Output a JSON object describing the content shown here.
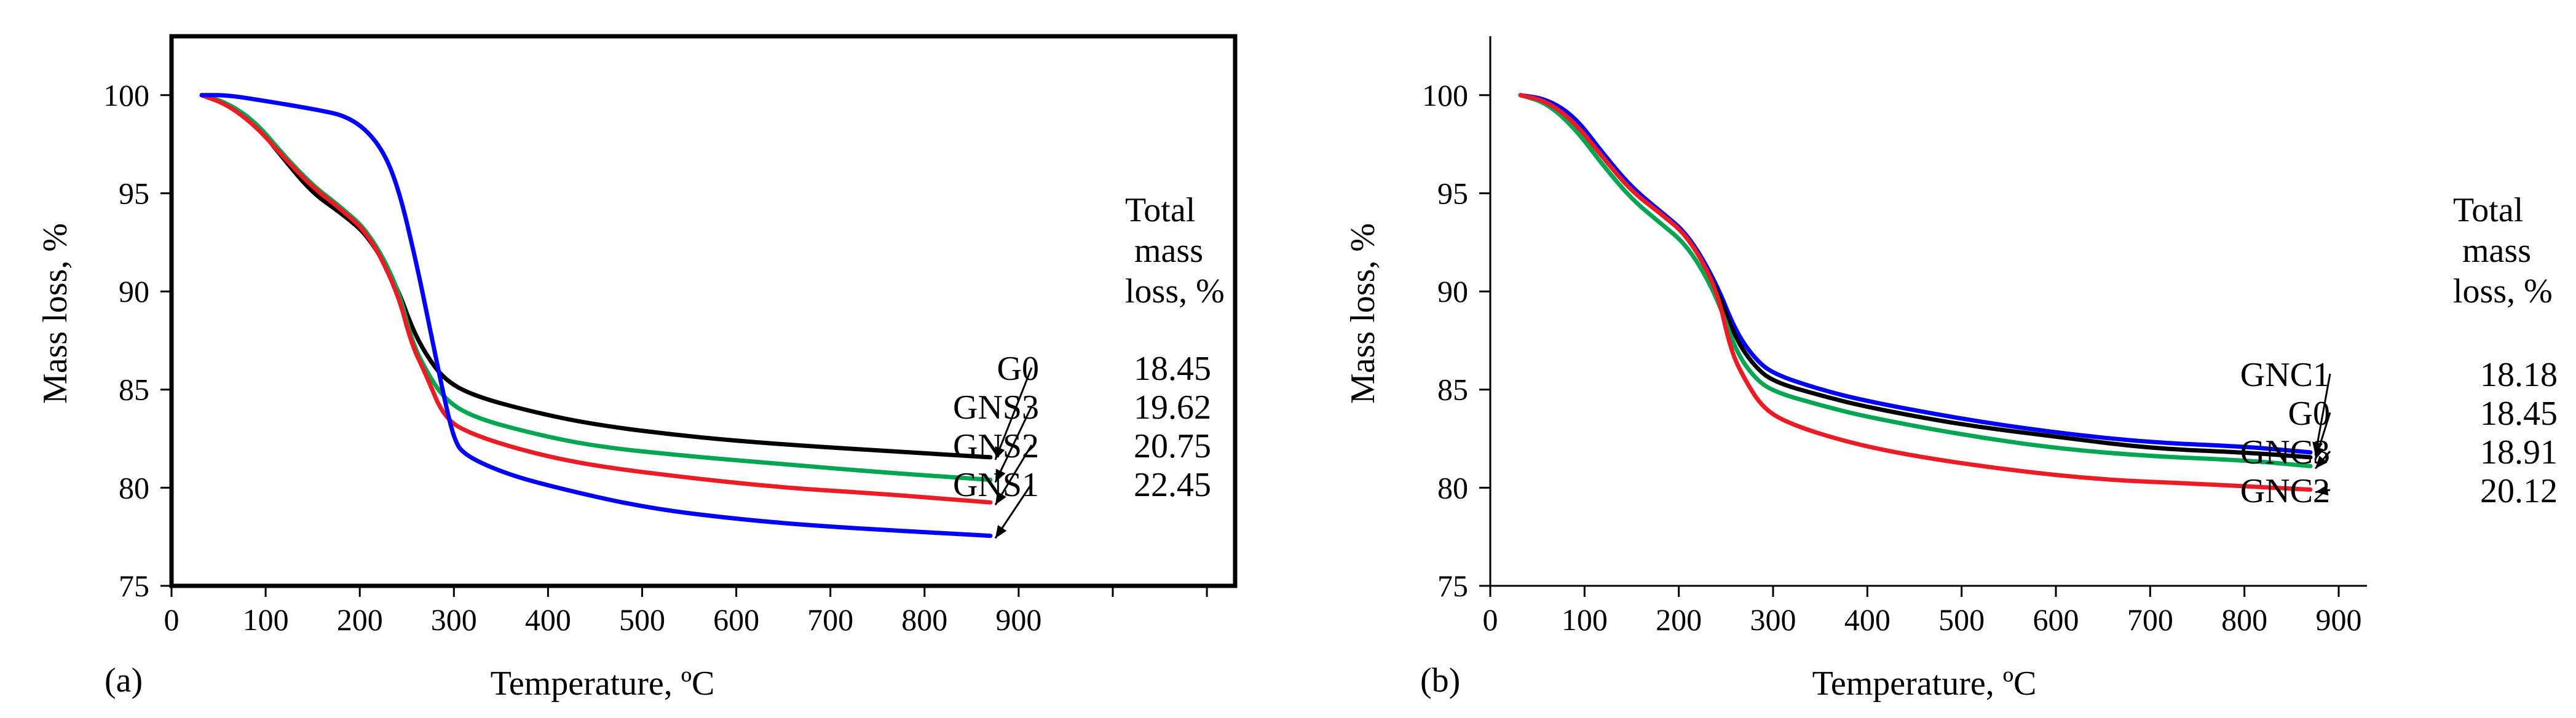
{
  "chart_data": [
    {
      "panel": "(a)",
      "type": "line",
      "xlabel": "Temperature, ºC",
      "ylabel": "Mass loss, %",
      "xlim": [
        0,
        1130
      ],
      "ylim": [
        75,
        103
      ],
      "xticks": [
        0,
        100,
        200,
        300,
        400,
        500,
        600,
        700,
        800,
        900
      ],
      "yticks": [
        75,
        80,
        85,
        90,
        95,
        100
      ],
      "annotation_header": [
        "Total",
        "mass",
        "loss, %"
      ],
      "series": [
        {
          "name": "G0",
          "color": "#000000",
          "total_mass_loss": "18.45",
          "x": [
            32,
            60,
            90,
            120,
            150,
            180,
            210,
            240,
            255,
            270,
            290,
            320,
            380,
            450,
            550,
            650,
            750,
            870
          ],
          "y": [
            100,
            99.6,
            98.5,
            96.7,
            95.0,
            94.0,
            92.8,
            90.2,
            88.2,
            86.8,
            85.5,
            84.7,
            83.9,
            83.2,
            82.6,
            82.2,
            81.9,
            81.55
          ]
        },
        {
          "name": "GNS3",
          "color": "#00A651",
          "total_mass_loss": "19.62",
          "x": [
            32,
            60,
            90,
            120,
            150,
            180,
            210,
            240,
            255,
            270,
            290,
            320,
            380,
            450,
            550,
            650,
            750,
            870
          ],
          "y": [
            100,
            99.6,
            98.6,
            96.9,
            95.4,
            94.3,
            93.0,
            90.3,
            87.5,
            86.0,
            84.5,
            83.6,
            82.8,
            82.1,
            81.6,
            81.2,
            80.8,
            80.4
          ]
        },
        {
          "name": "GNS2",
          "color": "#ED1C24",
          "total_mass_loss": "20.75",
          "x": [
            32,
            60,
            90,
            120,
            150,
            180,
            210,
            240,
            255,
            270,
            290,
            320,
            380,
            450,
            550,
            650,
            750,
            870
          ],
          "y": [
            100,
            99.5,
            98.4,
            96.8,
            95.3,
            94.2,
            92.9,
            90.0,
            87.3,
            85.8,
            83.5,
            82.7,
            81.8,
            81.1,
            80.5,
            80.0,
            79.7,
            79.25
          ]
        },
        {
          "name": "GNS1",
          "color": "#0000FF",
          "total_mass_loss": "22.45",
          "x": [
            32,
            60,
            100,
            150,
            190,
            220,
            240,
            260,
            275,
            290,
            300,
            310,
            350,
            400,
            500,
            600,
            700,
            870
          ],
          "y": [
            100,
            100,
            99.7,
            99.3,
            98.9,
            97.6,
            95.5,
            91.5,
            88.0,
            84.5,
            82.5,
            81.7,
            80.8,
            80.1,
            79.0,
            78.4,
            78.0,
            77.55
          ]
        }
      ],
      "labels_order": [
        "G0",
        "GNS3",
        "GNS2",
        "GNS1"
      ]
    },
    {
      "panel": "(b)",
      "type": "line",
      "xlabel": "Temperature, ºC",
      "ylabel": "Mass loss, %",
      "xlim": [
        0,
        930
      ],
      "ylim": [
        75,
        103
      ],
      "xticks": [
        0,
        100,
        200,
        300,
        400,
        500,
        600,
        700,
        800,
        900
      ],
      "yticks": [
        75,
        80,
        85,
        90,
        95,
        100
      ],
      "annotation_header": [
        "Total",
        "mass",
        "loss, %"
      ],
      "series": [
        {
          "name": "GNC1",
          "color": "#0000FF",
          "total_mass_loss": "18.18",
          "x": [
            32,
            60,
            90,
            120,
            150,
            180,
            210,
            240,
            260,
            280,
            300,
            350,
            400,
            500,
            600,
            700,
            800,
            870
          ],
          "y": [
            100,
            99.8,
            98.9,
            97.0,
            95.3,
            94.1,
            92.9,
            90.4,
            88.0,
            86.6,
            85.8,
            85.0,
            84.4,
            83.5,
            82.8,
            82.3,
            82.1,
            81.8
          ]
        },
        {
          "name": "G0",
          "color": "#000000",
          "total_mass_loss": "18.45",
          "x": [
            32,
            60,
            90,
            120,
            150,
            180,
            210,
            240,
            260,
            280,
            300,
            350,
            400,
            500,
            600,
            700,
            800,
            870
          ],
          "y": [
            100,
            99.7,
            98.6,
            96.8,
            95.1,
            94.0,
            92.8,
            90.2,
            87.6,
            86.2,
            85.4,
            84.7,
            84.1,
            83.2,
            82.6,
            82.0,
            81.8,
            81.55
          ]
        },
        {
          "name": "GNC3",
          "color": "#00A651",
          "total_mass_loss": "18.91",
          "x": [
            32,
            60,
            90,
            120,
            150,
            180,
            210,
            240,
            260,
            280,
            300,
            350,
            400,
            500,
            600,
            700,
            800,
            870
          ],
          "y": [
            100,
            99.6,
            98.3,
            96.4,
            94.7,
            93.5,
            92.3,
            89.8,
            87.0,
            85.6,
            84.9,
            84.2,
            83.6,
            82.7,
            82.0,
            81.6,
            81.4,
            81.1
          ]
        },
        {
          "name": "GNC2",
          "color": "#ED1C24",
          "total_mass_loss": "20.12",
          "x": [
            32,
            60,
            90,
            120,
            150,
            180,
            210,
            240,
            255,
            270,
            290,
            320,
            380,
            450,
            550,
            650,
            750,
            870
          ],
          "y": [
            100,
            99.7,
            98.6,
            96.8,
            95.1,
            94.0,
            92.8,
            90.2,
            87.0,
            85.5,
            84.0,
            83.2,
            82.3,
            81.6,
            80.9,
            80.4,
            80.2,
            79.9
          ]
        }
      ],
      "labels_order": [
        "GNC1",
        "G0",
        "GNC3",
        "GNC2"
      ]
    }
  ]
}
